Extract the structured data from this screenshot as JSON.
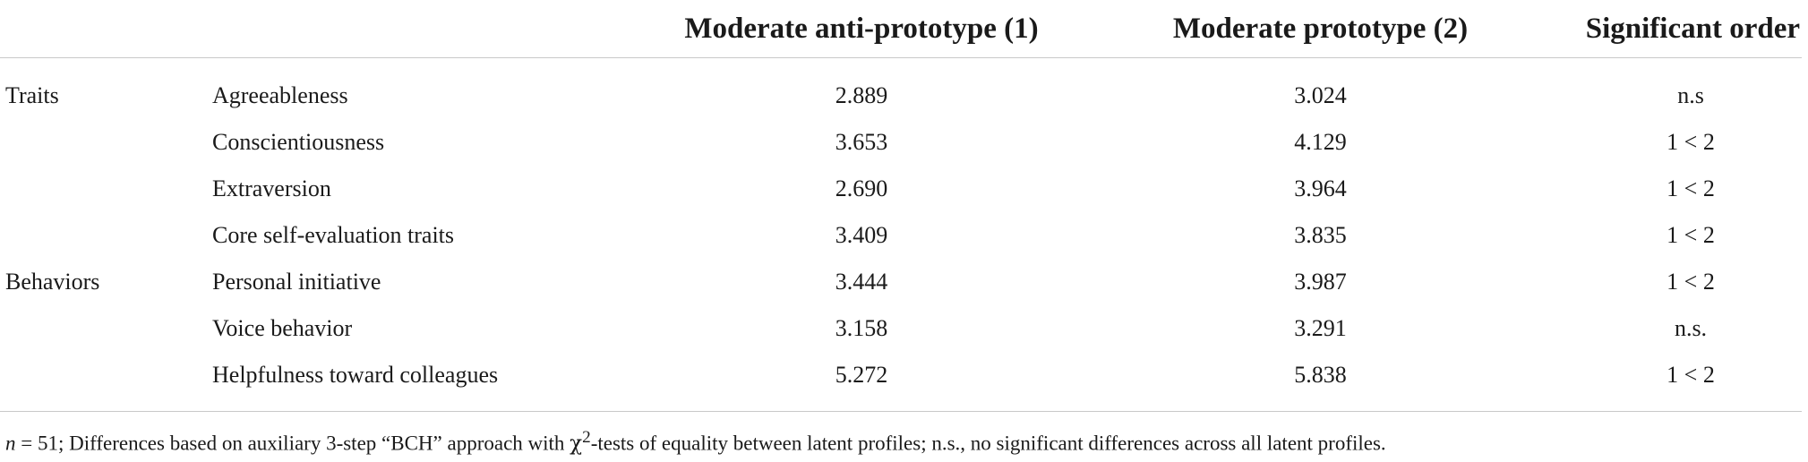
{
  "table": {
    "headers": {
      "category": "",
      "variable": "",
      "col1": "Moderate anti-prototype (1)",
      "col2": "Moderate prototype (2)",
      "col3": "Significant order"
    },
    "rows": [
      {
        "category": "Traits",
        "variable": "Agreeableness",
        "v1": "2.889",
        "v2": "3.024",
        "order": "n.s"
      },
      {
        "category": "",
        "variable": "Conscientiousness",
        "v1": "3.653",
        "v2": "4.129",
        "order": "1 < 2"
      },
      {
        "category": "",
        "variable": "Extraversion",
        "v1": "2.690",
        "v2": "3.964",
        "order": "1 < 2"
      },
      {
        "category": "",
        "variable": "Core self-evaluation traits",
        "v1": "3.409",
        "v2": "3.835",
        "order": "1 < 2"
      },
      {
        "category": "Behaviors",
        "variable": "Personal initiative",
        "v1": "3.444",
        "v2": "3.987",
        "order": "1 < 2"
      },
      {
        "category": "",
        "variable": "Voice behavior",
        "v1": "3.158",
        "v2": "3.291",
        "order": "n.s."
      },
      {
        "category": "",
        "variable": "Helpfulness toward colleagues",
        "v1": "5.272",
        "v2": "5.838",
        "order": "1 < 2"
      }
    ]
  },
  "footnote": {
    "n_symbol": "n",
    "n_text": " = 51; Differences based on auxiliary 3-step “BCH” approach with ",
    "chi": "χ",
    "chi_sup": "2",
    "rest": "-tests of equality between latent profiles; n.s., no significant differences across all latent profiles."
  }
}
